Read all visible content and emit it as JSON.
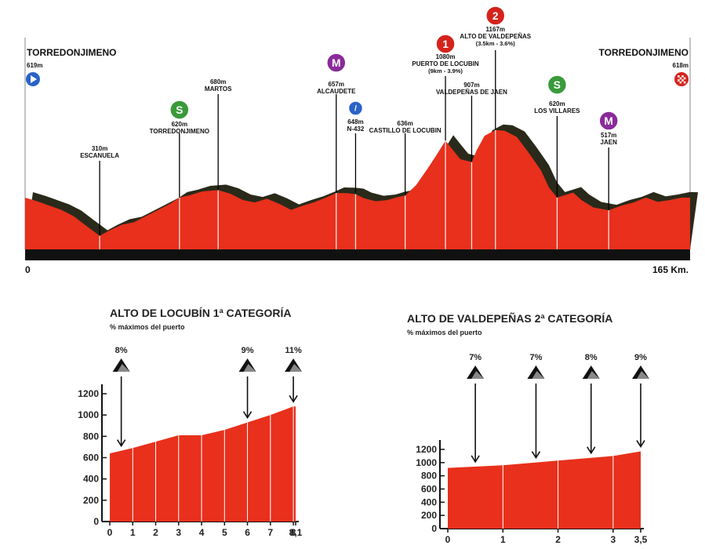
{
  "chart_data": [
    {
      "type": "area",
      "distance_unit": "Km.",
      "start_label": "0",
      "end_label": "165 Km.",
      "xlim": [
        0,
        165
      ],
      "start": {
        "name": "TORREDONJIMENO",
        "alt": "619m"
      },
      "finish": {
        "name": "TORREDONJIMENO",
        "alt": "618m"
      },
      "profile": [
        [
          0,
          619
        ],
        [
          3,
          590
        ],
        [
          6,
          555
        ],
        [
          9,
          520
        ],
        [
          12,
          470
        ],
        [
          15,
          395
        ],
        [
          18.5,
          310
        ],
        [
          21,
          355
        ],
        [
          24,
          400
        ],
        [
          27,
          420
        ],
        [
          30,
          470
        ],
        [
          33,
          520
        ],
        [
          36,
          570
        ],
        [
          38.3,
          620
        ],
        [
          41,
          640
        ],
        [
          44,
          670
        ],
        [
          47.9,
          680
        ],
        [
          51,
          650
        ],
        [
          54,
          600
        ],
        [
          57,
          580
        ],
        [
          60,
          610
        ],
        [
          63,
          570
        ],
        [
          66,
          520
        ],
        [
          69,
          555
        ],
        [
          72,
          585
        ],
        [
          75,
          625
        ],
        [
          77.2,
          657
        ],
        [
          80,
          655
        ],
        [
          82,
          648
        ],
        [
          84,
          615
        ],
        [
          87,
          590
        ],
        [
          90,
          600
        ],
        [
          92,
          620
        ],
        [
          94.3,
          636
        ],
        [
          97,
          720
        ],
        [
          100,
          860
        ],
        [
          102,
          960
        ],
        [
          104.3,
          1080
        ],
        [
          106,
          1010
        ],
        [
          108,
          930
        ],
        [
          110.8,
          907
        ],
        [
          112,
          1000
        ],
        [
          114,
          1120
        ],
        [
          116.7,
          1167
        ],
        [
          119,
          1160
        ],
        [
          122,
          1110
        ],
        [
          125,
          980
        ],
        [
          128,
          840
        ],
        [
          130,
          700
        ],
        [
          132,
          620
        ],
        [
          134,
          640
        ],
        [
          136,
          660
        ],
        [
          138,
          600
        ],
        [
          141,
          540
        ],
        [
          144.8,
          517
        ],
        [
          148,
          555
        ],
        [
          151,
          580
        ],
        [
          154,
          620
        ],
        [
          157,
          585
        ],
        [
          160,
          600
        ],
        [
          163,
          620
        ],
        [
          165,
          618
        ]
      ],
      "points": [
        {
          "km": "18.5",
          "x": 18.5,
          "alt": "310m",
          "name": "ESCANUELA",
          "badge": ""
        },
        {
          "km": "38.3",
          "x": 38.3,
          "alt": "620m",
          "name": "TORREDONJIMENO",
          "badge": "S"
        },
        {
          "km": "47.9",
          "x": 47.9,
          "alt": "680m",
          "name": "MARTOS",
          "badge": ""
        },
        {
          "km": "77.2",
          "x": 77.2,
          "alt": "657m",
          "name": "ALCAUDETE",
          "badge": "M"
        },
        {
          "km": "82",
          "x": 82,
          "alt": "648m",
          "name": "N-432",
          "badge": "feed"
        },
        {
          "km": "94.3",
          "x": 94.3,
          "alt": "636m",
          "name": "CASTILLO DE LOCUBIN",
          "badge": ""
        },
        {
          "km": "104.3",
          "x": 104.3,
          "alt": "1080m",
          "name": "PUERTO DE LOCUBIN",
          "detail": "(9km - 3.9%)",
          "badge": "1"
        },
        {
          "km": "110.8",
          "x": 110.8,
          "alt": "907m",
          "name": "VALDEPEÑAS DE JAEN",
          "badge": ""
        },
        {
          "km": "116.7",
          "x": 116.7,
          "alt": "1167m",
          "name": "ALTO DE VALDEPEÑAS",
          "detail": "(3.5km - 3.6%)",
          "badge": "2"
        },
        {
          "km": "132",
          "x": 132,
          "alt": "620m",
          "name": "LOS VILLARES",
          "badge": "S"
        },
        {
          "km": "144.8",
          "x": 144.8,
          "alt": "517m",
          "name": "JAEN",
          "badge": "M"
        }
      ]
    },
    {
      "type": "area",
      "title": "ALTO DE LOCUBÍN 1ª CATEGORÍA",
      "subtitle": "% máximos del puerto",
      "x": [
        0,
        1,
        2,
        3,
        4,
        5,
        6,
        7,
        8,
        8.1
      ],
      "x_tick_labels": [
        "0",
        "1",
        "2",
        "3",
        "4",
        "5",
        "6",
        "7",
        "8",
        "8,1"
      ],
      "y": [
        640,
        690,
        750,
        810,
        810,
        860,
        930,
        1000,
        1080,
        1080
      ],
      "ylim": [
        0,
        1200
      ],
      "y_ticks": [
        "0",
        "200",
        "400",
        "600",
        "800",
        "1000",
        "1200"
      ],
      "markers": [
        {
          "x": 0.5,
          "label": "8%"
        },
        {
          "x": 6,
          "label": "9%"
        },
        {
          "x": 8,
          "label": "11%"
        }
      ]
    },
    {
      "type": "area",
      "title": "ALTO DE VALDEPEÑAS 2ª CATEGORÍA",
      "subtitle": "% máximos del puerto",
      "x": [
        0,
        1,
        2,
        3,
        3.5
      ],
      "x_tick_labels": [
        "0",
        "1",
        "2",
        "3",
        "3,5"
      ],
      "y": [
        920,
        960,
        1030,
        1100,
        1170
      ],
      "ylim": [
        0,
        1200
      ],
      "y_ticks": [
        "0",
        "200",
        "400",
        "600",
        "800",
        "1000",
        "1200"
      ],
      "markers": [
        {
          "x": 0.5,
          "label": "7%"
        },
        {
          "x": 1.6,
          "label": "7%"
        },
        {
          "x": 2.6,
          "label": "8%"
        },
        {
          "x": 3.5,
          "label": "9%"
        }
      ]
    }
  ],
  "colors": {
    "fill": "#e8301c",
    "shadow": "#2a2a1a",
    "band": "#111111",
    "sprint": "#3a9a3a",
    "mountain": "#8a2a9a",
    "climb_cat": "#d4241c",
    "start": "#2a62c8",
    "finish": "#d4241c",
    "feed": "#2a62c8"
  }
}
